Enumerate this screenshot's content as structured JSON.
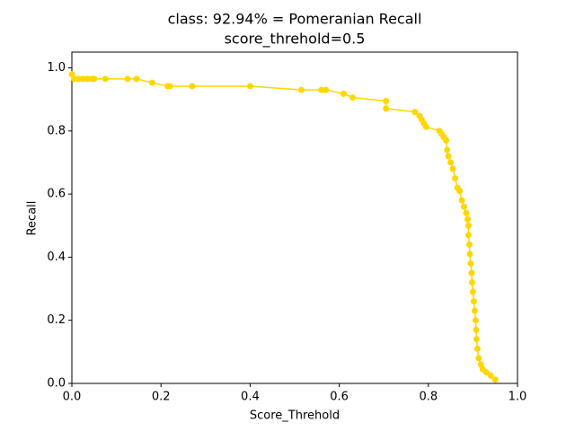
{
  "chart_data": {
    "type": "line",
    "title": "class: 92.94% = Pomeranian Recall",
    "subtitle": "score_threhold=0.5",
    "xlabel": "Score_Threhold",
    "ylabel": "Recall",
    "xlim": [
      0,
      1
    ],
    "ylim": [
      0,
      1.05
    ],
    "xticks": [
      {
        "value": 0,
        "label": "0.0"
      },
      {
        "value": 0.2,
        "label": "0.2"
      },
      {
        "value": 0.4,
        "label": "0.4"
      },
      {
        "value": 0.6,
        "label": "0.6"
      },
      {
        "value": 0.8,
        "label": "0.8"
      },
      {
        "value": 1,
        "label": "1.0"
      }
    ],
    "yticks": [
      {
        "value": 0,
        "label": "0.0"
      },
      {
        "value": 0.2,
        "label": "0.2"
      },
      {
        "value": 0.4,
        "label": "0.4"
      },
      {
        "value": 0.6,
        "label": "0.6"
      },
      {
        "value": 0.8,
        "label": "0.8"
      },
      {
        "value": 1,
        "label": "1.0"
      }
    ],
    "series": [
      {
        "color": "#ffd700",
        "x": [
          0,
          0.005,
          0.015,
          0.025,
          0.035,
          0.045,
          0.05,
          0.075,
          0.125,
          0.145,
          0.18,
          0.215,
          0.22,
          0.27,
          0.4,
          0.515,
          0.56,
          0.57,
          0.61,
          0.63,
          0.705,
          0.705,
          0.77,
          0.78,
          0.785,
          0.79,
          0.795,
          0.825,
          0.83,
          0.835,
          0.84,
          0.842,
          0.845,
          0.85,
          0.855,
          0.86,
          0.865,
          0.87,
          0.875,
          0.88,
          0.885,
          0.888,
          0.89,
          0.89,
          0.892,
          0.893,
          0.895,
          0.897,
          0.898,
          0.9,
          0.902,
          0.904,
          0.906,
          0.907,
          0.908,
          0.91,
          0.913,
          0.918,
          0.922,
          0.93,
          0.94,
          0.95
        ],
        "values": [
          0.98,
          0.965,
          0.965,
          0.965,
          0.965,
          0.965,
          0.965,
          0.965,
          0.965,
          0.965,
          0.953,
          0.942,
          0.942,
          0.942,
          0.942,
          0.93,
          0.93,
          0.93,
          0.918,
          0.906,
          0.895,
          0.871,
          0.86,
          0.848,
          0.836,
          0.824,
          0.813,
          0.8,
          0.79,
          0.78,
          0.77,
          0.74,
          0.72,
          0.7,
          0.68,
          0.65,
          0.62,
          0.61,
          0.58,
          0.56,
          0.54,
          0.52,
          0.5,
          0.47,
          0.44,
          0.41,
          0.38,
          0.35,
          0.32,
          0.29,
          0.26,
          0.23,
          0.2,
          0.17,
          0.14,
          0.11,
          0.08,
          0.06,
          0.045,
          0.035,
          0.025,
          0.012
        ]
      }
    ]
  }
}
